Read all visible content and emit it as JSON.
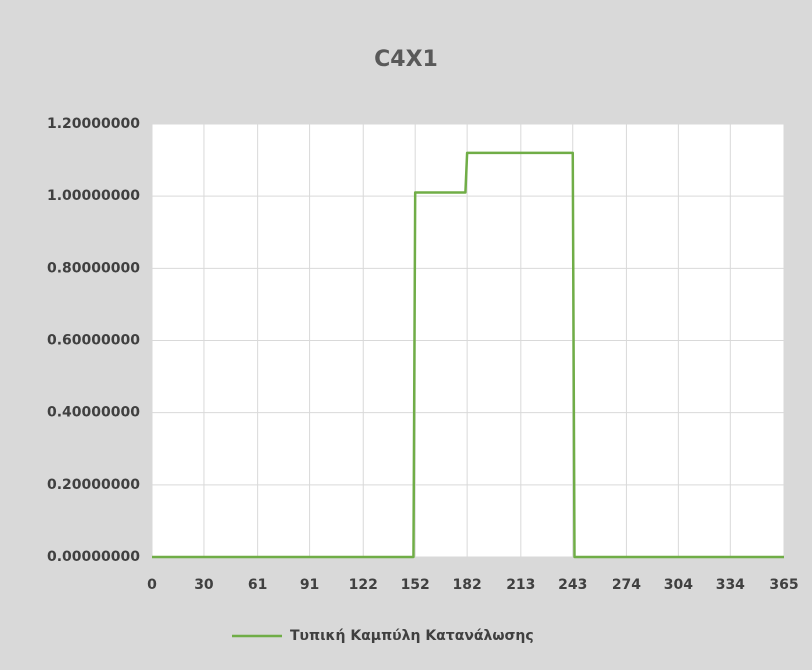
{
  "chart_data": {
    "type": "line",
    "title": "C4X1",
    "x": [
      0,
      151,
      152,
      181,
      182,
      243,
      244,
      365
    ],
    "series": [
      {
        "name": "Τυπική Καμπύλη Κατανάλωσης",
        "color": "#70ad47",
        "values": [
          0,
          0,
          1.01,
          1.01,
          1.12,
          1.12,
          0,
          0
        ]
      }
    ],
    "xlim": [
      0,
      365
    ],
    "xticks": [
      0,
      30,
      61,
      91,
      122,
      152,
      182,
      213,
      243,
      274,
      304,
      334,
      365
    ],
    "ylim": [
      0,
      1.2
    ],
    "yticks": [
      {
        "value": 0,
        "label": "0.00000000"
      },
      {
        "value": 0.2,
        "label": "0.20000000"
      },
      {
        "value": 0.4,
        "label": "0.40000000"
      },
      {
        "value": 0.6,
        "label": "0.60000000"
      },
      {
        "value": 0.8,
        "label": "0.80000000"
      },
      {
        "value": 1.0,
        "label": "1.00000000"
      },
      {
        "value": 1.2,
        "label": "1.20000000"
      }
    ],
    "grid": true,
    "legend": "bottom"
  }
}
